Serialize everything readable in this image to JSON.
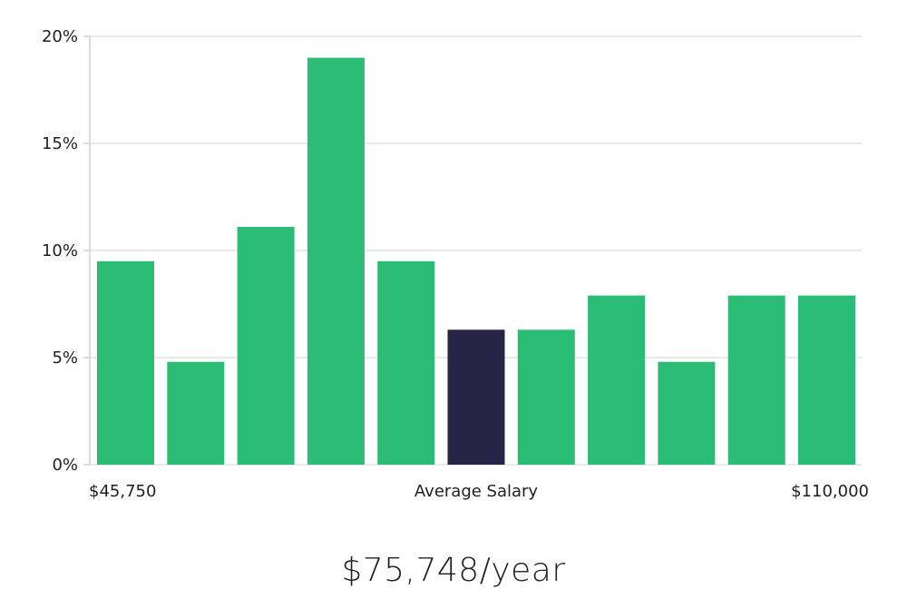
{
  "chart_data": {
    "type": "bar",
    "title": "",
    "xlabel": "Average Salary",
    "ylabel": "",
    "x_range_labels": {
      "min": "$45,750",
      "max": "$110,000"
    },
    "ylim": [
      0,
      20
    ],
    "yticks": [
      0,
      5,
      10,
      15,
      20
    ],
    "ytick_labels": [
      "0%",
      "5%",
      "10%",
      "15%",
      "20%"
    ],
    "grid": true,
    "values": [
      9.5,
      4.8,
      11.1,
      19.0,
      9.5,
      6.3,
      6.3,
      7.9,
      4.8,
      7.9,
      7.9
    ],
    "highlight_index": 5,
    "colors": {
      "bar": "#2bbd76",
      "highlight": "#272446",
      "grid": "#e2e2e6",
      "axis": "#cfcfd4"
    }
  },
  "summary": {
    "headline": "$75,748/year"
  }
}
